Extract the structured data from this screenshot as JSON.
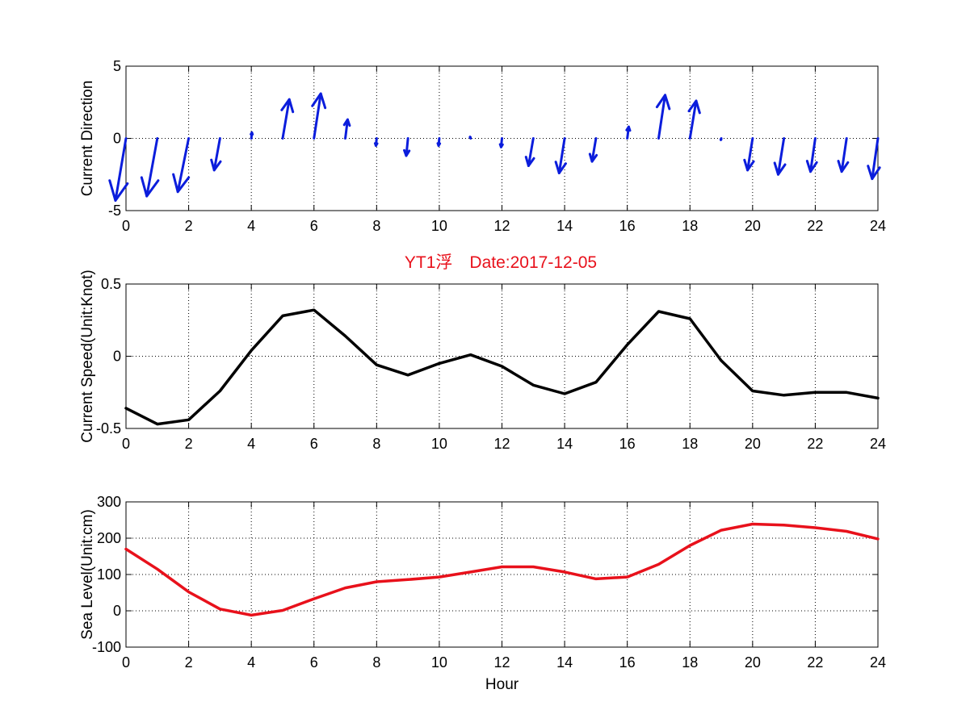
{
  "figure": {
    "title": "YT1浮　Date:2017-12-05",
    "title_color": "#e8111b"
  },
  "chart_data": [
    {
      "type": "quiver",
      "panel": "top",
      "ylabel": "Current Direction",
      "xlabel": "",
      "xlim": [
        0,
        24
      ],
      "ylim": [
        -5,
        5
      ],
      "xticks": [
        0,
        2,
        4,
        6,
        8,
        10,
        12,
        14,
        16,
        18,
        20,
        22,
        24
      ],
      "yticks": [
        -5,
        0,
        5
      ],
      "ytick_labels": [
        "-5",
        "0",
        "5"
      ],
      "grid": true,
      "color": "#0b1ddc",
      "series": [
        {
          "x": [
            0,
            1,
            2,
            3,
            4,
            5,
            6,
            7,
            8,
            9,
            10,
            11,
            12,
            13,
            14,
            15,
            16,
            17,
            18,
            19,
            20,
            21,
            22,
            23,
            24
          ],
          "u": [
            -0.73,
            -0.73,
            -0.75,
            -0.4,
            0.04,
            0.46,
            0.47,
            0.16,
            -0.05,
            -0.12,
            -0.05,
            -0.04,
            -0.06,
            -0.33,
            -0.38,
            -0.27,
            0.1,
            0.45,
            0.43,
            -0.03,
            -0.35,
            -0.4,
            -0.33,
            -0.34,
            -0.4
          ],
          "v": [
            -4.3,
            -4.0,
            -3.7,
            -2.2,
            0.4,
            2.7,
            3.1,
            1.3,
            -0.5,
            -1.2,
            -0.5,
            0.1,
            -0.6,
            -1.9,
            -2.4,
            -1.6,
            0.8,
            3.0,
            2.6,
            -0.1,
            -2.2,
            -2.5,
            -2.3,
            -2.3,
            -2.8
          ]
        }
      ]
    },
    {
      "type": "line",
      "panel": "middle",
      "ylabel": "Current Speed(Unit:Knot)",
      "xlabel": "",
      "xlim": [
        0,
        24
      ],
      "ylim": [
        -0.5,
        0.5
      ],
      "xticks": [
        0,
        2,
        4,
        6,
        8,
        10,
        12,
        14,
        16,
        18,
        20,
        22,
        24
      ],
      "yticks": [
        -0.5,
        0,
        0.5
      ],
      "ytick_labels": [
        "-0.5",
        "0",
        "0.5"
      ],
      "grid": true,
      "series": [
        {
          "color": "#000000",
          "x": [
            0,
            1,
            2,
            3,
            4,
            5,
            6,
            7,
            8,
            9,
            10,
            11,
            12,
            13,
            14,
            15,
            16,
            17,
            18,
            19,
            20,
            21,
            22,
            23,
            24
          ],
          "values": [
            -0.36,
            -0.47,
            -0.44,
            -0.24,
            0.04,
            0.28,
            0.32,
            0.14,
            -0.06,
            -0.13,
            -0.05,
            0.01,
            -0.07,
            -0.2,
            -0.26,
            -0.18,
            0.08,
            0.31,
            0.26,
            -0.03,
            -0.24,
            -0.27,
            -0.25,
            -0.25,
            -0.29
          ]
        }
      ]
    },
    {
      "type": "line",
      "panel": "bottom",
      "ylabel": "Sea Level(Unit:cm)",
      "xlabel": "Hour",
      "xlim": [
        0,
        24
      ],
      "ylim": [
        -100,
        300
      ],
      "xticks": [
        0,
        2,
        4,
        6,
        8,
        10,
        12,
        14,
        16,
        18,
        20,
        22,
        24
      ],
      "yticks": [
        -100,
        0,
        100,
        200,
        300
      ],
      "ytick_labels": [
        "-100",
        "0",
        "100",
        "200",
        "300"
      ],
      "grid": true,
      "series": [
        {
          "color": "#e8111b",
          "x": [
            0,
            1,
            2,
            3,
            4,
            5,
            6,
            7,
            8,
            9,
            10,
            11,
            12,
            13,
            14,
            15,
            16,
            17,
            18,
            19,
            20,
            21,
            22,
            23,
            24
          ],
          "values": [
            170,
            115,
            52,
            5,
            -12,
            1,
            33,
            63,
            80,
            86,
            93,
            107,
            121,
            121,
            107,
            88,
            93,
            128,
            180,
            222,
            239,
            236,
            229,
            219,
            198
          ]
        }
      ]
    }
  ]
}
